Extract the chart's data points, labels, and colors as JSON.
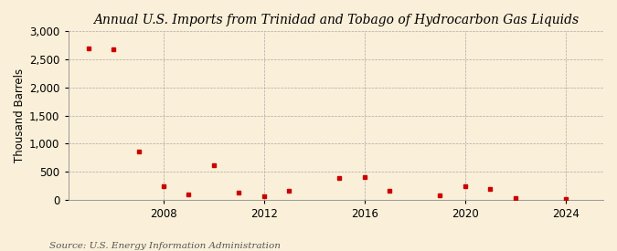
{
  "title": "Annual U.S. Imports from Trinidad and Tobago of Hydrocarbon Gas Liquids",
  "ylabel": "Thousand Barrels",
  "source": "Source: U.S. Energy Information Administration",
  "background_color": "#faefd8",
  "marker_color": "#cc0000",
  "years": [
    2005,
    2006,
    2007,
    2008,
    2009,
    2010,
    2011,
    2012,
    2013,
    2015,
    2016,
    2017,
    2019,
    2020,
    2021,
    2022,
    2024
  ],
  "values": [
    2700,
    2680,
    860,
    240,
    100,
    620,
    120,
    60,
    155,
    390,
    395,
    165,
    80,
    240,
    190,
    20,
    10
  ],
  "ylim": [
    0,
    3000
  ],
  "yticks": [
    0,
    500,
    1000,
    1500,
    2000,
    2500,
    3000
  ],
  "xlim": [
    2004.2,
    2025.5
  ],
  "xticks": [
    2008,
    2012,
    2016,
    2020,
    2024
  ],
  "title_fontsize": 10,
  "axis_fontsize": 8.5,
  "source_fontsize": 7.5,
  "title_style": "italic",
  "title_fontfamily": "serif"
}
